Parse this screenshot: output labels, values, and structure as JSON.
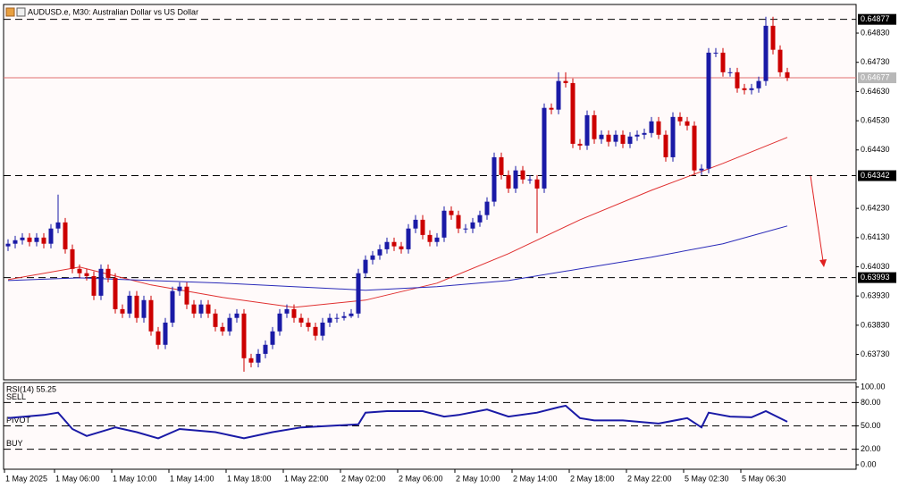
{
  "chart_data": {
    "type": "candlestick",
    "title": "AUDUSD.e, M30:  Australian Dollar vs US Dollar",
    "up_color": "#1a1aa6",
    "down_color": "#cc0000",
    "open": [
      0.641,
      0.64109,
      0.64121,
      0.6413,
      0.64115,
      0.6413,
      0.64109,
      0.64161,
      0.64182,
      0.6409,
      0.64023,
      0.64008,
      0.63998,
      0.63931,
      0.64023,
      0.63992,
      0.63885,
      0.6387,
      0.63931,
      0.63855,
      0.63916,
      0.63809,
      0.63763,
      0.63839,
      0.63947,
      0.63962,
      0.63901,
      0.6387,
      0.63901,
      0.6387,
      0.63824,
      0.63809,
      0.63855,
      0.6387,
      0.63717,
      0.63702,
      0.63732,
      0.63763,
      0.63809,
      0.6387,
      0.63885,
      0.63855,
      0.63839,
      0.63824,
      0.63794,
      0.63839,
      0.63855,
      0.63855,
      0.63861,
      0.6387,
      0.64008,
      0.64054,
      0.64069,
      0.6409,
      0.64115,
      0.641,
      0.6409,
      0.64161,
      0.64191,
      0.64139,
      0.64115,
      0.6413,
      0.64222,
      0.64207,
      0.64161,
      0.64161,
      0.64182,
      0.64207,
      0.64253,
      0.64405,
      0.64344,
      0.64298,
      0.6436,
      0.64329,
      0.64329,
      0.64298,
      0.64574,
      0.64568,
      0.64666,
      0.64659,
      0.64451,
      0.64445,
      0.64549,
      0.64467,
      0.64482,
      0.64458,
      0.64482,
      0.64451,
      0.64476,
      0.64482,
      0.64488,
      0.64528,
      0.64482,
      0.64405,
      0.64543,
      0.64528,
      0.64513,
      0.6436,
      0.64366,
      0.64763,
      0.64763,
      0.64696,
      0.64696,
      0.64641,
      0.64635,
      0.64641,
      0.64666,
      0.64855,
      0.64773,
      0.64696
    ],
    "high": [
      0.64124,
      0.64136,
      0.64145,
      0.64145,
      0.64145,
      0.64145,
      0.64176,
      0.64277,
      0.64197,
      0.64106,
      0.64038,
      0.64023,
      0.64014,
      0.64038,
      0.64038,
      0.64008,
      0.63901,
      0.63947,
      0.63947,
      0.63931,
      0.63931,
      0.63824,
      0.63855,
      0.63962,
      0.63977,
      0.63977,
      0.63916,
      0.63916,
      0.63916,
      0.63885,
      0.63839,
      0.6387,
      0.63885,
      0.63885,
      0.63732,
      0.63748,
      0.63778,
      0.63824,
      0.63885,
      0.63901,
      0.63901,
      0.6387,
      0.63855,
      0.63839,
      0.63855,
      0.6387,
      0.6387,
      0.63876,
      0.63885,
      0.64023,
      0.64069,
      0.64084,
      0.64106,
      0.6413,
      0.6413,
      0.64115,
      0.64176,
      0.64207,
      0.64207,
      0.64155,
      0.64145,
      0.64237,
      0.64237,
      0.64222,
      0.64176,
      0.64197,
      0.64222,
      0.64268,
      0.64421,
      0.64421,
      0.6436,
      0.64375,
      0.64375,
      0.64344,
      0.64344,
      0.64589,
      0.64589,
      0.64696,
      0.64696,
      0.64675,
      0.64467,
      0.64565,
      0.64565,
      0.64497,
      0.64497,
      0.64497,
      0.64497,
      0.64491,
      0.64497,
      0.64503,
      0.64543,
      0.64543,
      0.64497,
      0.64559,
      0.64559,
      0.64543,
      0.64528,
      0.64381,
      0.64779,
      0.64779,
      0.64779,
      0.64711,
      0.64711,
      0.64656,
      0.64656,
      0.64681,
      0.64886,
      0.64886,
      0.64788,
      0.64711
    ],
    "low": [
      0.64084,
      0.64093,
      0.64106,
      0.641,
      0.641,
      0.64093,
      0.64093,
      0.64145,
      0.64075,
      0.64008,
      0.63992,
      0.63983,
      0.63916,
      0.63916,
      0.63977,
      0.6387,
      0.63855,
      0.63855,
      0.63839,
      0.63839,
      0.63794,
      0.63748,
      0.63748,
      0.63824,
      0.63931,
      0.63885,
      0.63855,
      0.63855,
      0.63855,
      0.63809,
      0.63794,
      0.63794,
      0.63839,
      0.63671,
      0.63686,
      0.63686,
      0.63717,
      0.63748,
      0.63794,
      0.63855,
      0.63839,
      0.63824,
      0.63809,
      0.63778,
      0.63778,
      0.63824,
      0.63839,
      0.63846,
      0.63855,
      0.63855,
      0.63992,
      0.64038,
      0.64054,
      0.64075,
      0.64084,
      0.64075,
      0.64075,
      0.64145,
      0.64124,
      0.641,
      0.641,
      0.64115,
      0.64191,
      0.64145,
      0.64145,
      0.64145,
      0.64167,
      0.64191,
      0.64237,
      0.64329,
      0.64283,
      0.64283,
      0.64314,
      0.64314,
      0.64145,
      0.64283,
      0.64552,
      0.64552,
      0.64644,
      0.64436,
      0.6443,
      0.6443,
      0.64451,
      0.64451,
      0.64442,
      0.64442,
      0.64436,
      0.64436,
      0.64461,
      0.64467,
      0.64473,
      0.64467,
      0.6439,
      0.6439,
      0.64513,
      0.64497,
      0.64344,
      0.64344,
      0.6435,
      0.64748,
      0.64681,
      0.64681,
      0.64626,
      0.6462,
      0.6462,
      0.64626,
      0.6465,
      0.64757,
      0.64681,
      0.64666
    ],
    "close": [
      0.64109,
      0.64121,
      0.6413,
      0.64115,
      0.6413,
      0.64109,
      0.64161,
      0.64182,
      0.6409,
      0.64023,
      0.64008,
      0.63998,
      0.63931,
      0.64023,
      0.63992,
      0.63885,
      0.6387,
      0.63931,
      0.63855,
      0.63916,
      0.63809,
      0.63763,
      0.63839,
      0.63947,
      0.63962,
      0.63901,
      0.6387,
      0.63901,
      0.6387,
      0.63824,
      0.63809,
      0.63855,
      0.6387,
      0.63717,
      0.63702,
      0.63732,
      0.63763,
      0.63809,
      0.6387,
      0.63885,
      0.63855,
      0.63839,
      0.63824,
      0.63794,
      0.63839,
      0.63855,
      0.63855,
      0.63861,
      0.6387,
      0.64008,
      0.64054,
      0.64069,
      0.6409,
      0.64115,
      0.641,
      0.6409,
      0.64161,
      0.64191,
      0.64139,
      0.64115,
      0.6413,
      0.64222,
      0.64207,
      0.64161,
      0.64161,
      0.64182,
      0.64207,
      0.64253,
      0.64405,
      0.64344,
      0.64298,
      0.6436,
      0.64329,
      0.64329,
      0.64298,
      0.64574,
      0.64568,
      0.64666,
      0.64659,
      0.64451,
      0.64445,
      0.64549,
      0.64467,
      0.64482,
      0.64458,
      0.64482,
      0.64451,
      0.64476,
      0.64482,
      0.64488,
      0.64528,
      0.64482,
      0.64405,
      0.64543,
      0.64528,
      0.64513,
      0.6436,
      0.64366,
      0.64763,
      0.64763,
      0.64696,
      0.64696,
      0.64641,
      0.64635,
      0.64641,
      0.64666,
      0.64855,
      0.64773,
      0.64696,
      0.64677
    ],
    "xlim": [
      -0.625,
      118.625
    ],
    "xticks": [
      {
        "value": 0,
        "label": "1 May 2025"
      },
      {
        "value": 7,
        "label": "1 May 06:00"
      },
      {
        "value": 15,
        "label": "1 May 10:00"
      },
      {
        "value": 23,
        "label": "1 May 14:00"
      },
      {
        "value": 31,
        "label": "1 May 18:00"
      },
      {
        "value": 39,
        "label": "1 May 22:00"
      },
      {
        "value": 47,
        "label": "2 May 02:00"
      },
      {
        "value": 55,
        "label": "2 May 06:00"
      },
      {
        "value": 63,
        "label": "2 May 10:00"
      },
      {
        "value": 71,
        "label": "2 May 14:00"
      },
      {
        "value": 79,
        "label": "2 May 18:00"
      },
      {
        "value": 87,
        "label": "2 May 22:00"
      },
      {
        "value": 95,
        "label": "5 May 02:30"
      },
      {
        "value": 103,
        "label": "5 May 06:30"
      }
    ],
    "ylim": [
      0.63643,
      0.64928
    ],
    "yticks": [
      {
        "value": 0.6483,
        "label": "0.64830"
      },
      {
        "value": 0.6473,
        "label": "0.64730"
      },
      {
        "value": 0.6463,
        "label": "0.64630"
      },
      {
        "value": 0.6453,
        "label": "0.64530"
      },
      {
        "value": 0.6443,
        "label": "0.64430"
      },
      {
        "value": 0.6423,
        "label": "0.64230"
      },
      {
        "value": 0.6413,
        "label": "0.64130"
      },
      {
        "value": 0.6403,
        "label": "0.64030"
      },
      {
        "value": 0.6393,
        "label": "0.63930"
      },
      {
        "value": 0.6383,
        "label": "0.63830"
      },
      {
        "value": 0.6373,
        "label": "0.63730"
      }
    ],
    "levels": [
      0.64877,
      0.64342,
      0.63993
    ],
    "level_color": "#000000",
    "price": 0.64677,
    "price_color": "#e07070",
    "moving_averages": [
      {
        "color": "#e03030",
        "x": [
          0,
          10,
          20,
          30,
          40,
          50,
          60,
          70,
          80,
          90,
          100,
          109
        ],
        "values": [
          0.63986,
          0.64029,
          0.63968,
          0.63925,
          0.63891,
          0.63916,
          0.63974,
          0.64075,
          0.64191,
          0.64292,
          0.64384,
          0.64473
        ]
      },
      {
        "color": "#2a2ab8",
        "x": [
          0,
          10,
          20,
          30,
          40,
          50,
          60,
          70,
          80,
          90,
          100,
          109
        ],
        "values": [
          0.63983,
          0.63992,
          0.63983,
          0.63974,
          0.63962,
          0.6395,
          0.63962,
          0.63983,
          0.64023,
          0.64063,
          0.64109,
          0.6417
        ]
      }
    ],
    "rsi": {
      "title": "RSI(14) 55.25",
      "ylim": [
        -5.7,
        105.7
      ],
      "yticks": [
        {
          "value": 100,
          "label": "100.00"
        },
        {
          "value": 80,
          "label": "80.00"
        },
        {
          "value": 50,
          "label": "50.00"
        },
        {
          "value": 20,
          "label": "20.00"
        },
        {
          "value": 0,
          "label": "0.00"
        }
      ],
      "levels": [
        {
          "value": 80,
          "label": "SELL"
        },
        {
          "value": 50,
          "label": "PIVOT"
        },
        {
          "value": 20,
          "label": "BUY"
        }
      ],
      "color": "#1a1aa6",
      "x": [
        0,
        5,
        7,
        9,
        11,
        15,
        18,
        21,
        24,
        29,
        33,
        37,
        41,
        49,
        50,
        53,
        58,
        61,
        63,
        67,
        70,
        74,
        77,
        78,
        80,
        82,
        86,
        91,
        95,
        97,
        98,
        101,
        104,
        106,
        109
      ],
      "values": [
        60,
        64,
        67,
        46,
        37,
        48,
        42,
        34,
        46,
        42,
        34,
        42,
        48,
        52,
        67,
        69,
        69,
        62,
        64,
        71,
        62,
        67,
        74,
        76,
        60,
        57,
        57,
        53,
        60,
        48,
        67,
        62,
        61,
        69,
        55.25
      ]
    }
  }
}
